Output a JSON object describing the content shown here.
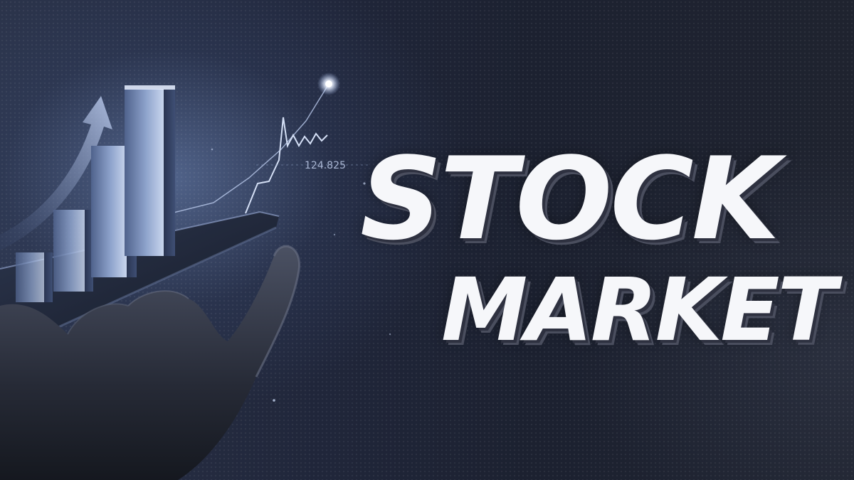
{
  "headline": {
    "line1": "STOCK",
    "line2": "MARKET"
  },
  "illustration": {
    "price_readout": "124.825",
    "icons": [
      "bar-chart-icon",
      "trend-arrow-icon",
      "smartphone-icon",
      "hand-icon",
      "line-chart-icon"
    ]
  },
  "colors": {
    "background": "#1f2433",
    "headline_text": "#f6f7fa",
    "glow": "#7f9ad0"
  }
}
